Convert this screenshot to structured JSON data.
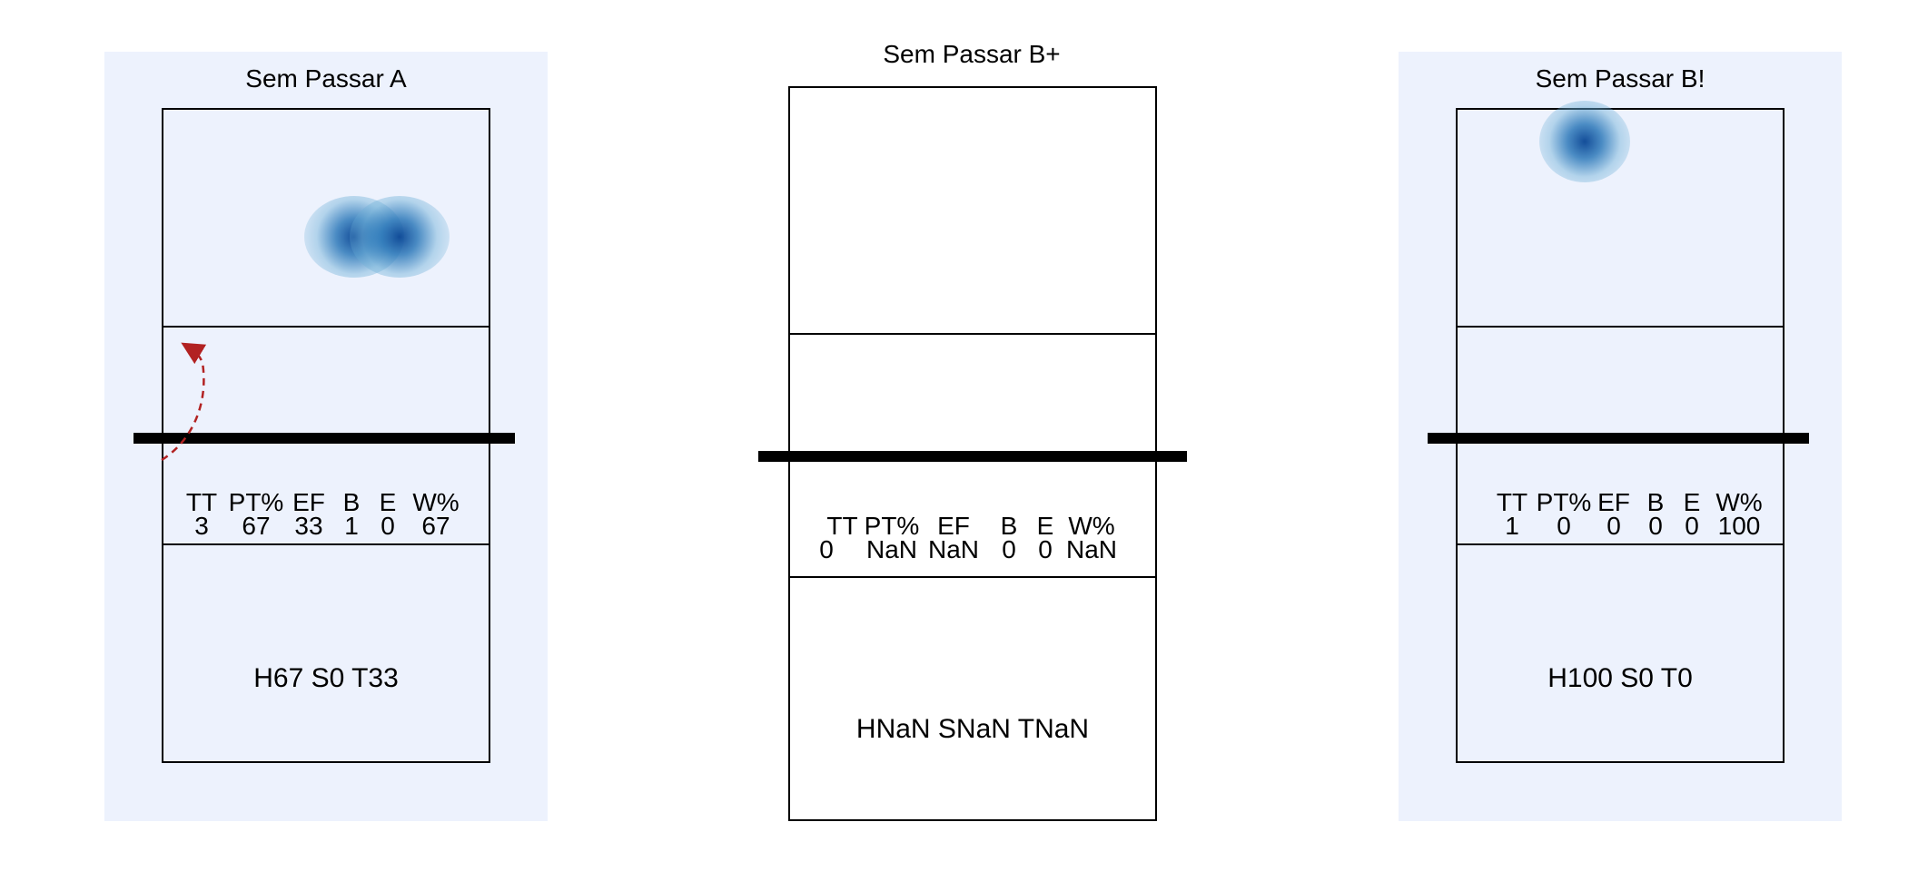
{
  "panels": [
    {
      "title": "Sem Passar A",
      "shaded": true,
      "stat_headers": [
        "TT",
        "PT%",
        "EF",
        "B",
        "E",
        "W%"
      ],
      "stat_values": [
        "3",
        "67",
        "33",
        "1",
        "0",
        "67"
      ],
      "summary": "H67 S0 T33",
      "has_heat": true,
      "has_arrow": true
    },
    {
      "title": "Sem Passar B+",
      "shaded": false,
      "stat_headers": [
        "TT",
        "PT%",
        "EF",
        "B",
        "E",
        "W%"
      ],
      "stat_values": [
        "0",
        "NaN",
        "NaN",
        "0",
        "0",
        "NaN"
      ],
      "summary": "HNaN SNaN TNaN",
      "has_heat": false,
      "has_arrow": false
    },
    {
      "title": "Sem Passar B!",
      "shaded": true,
      "stat_headers": [
        "TT",
        "PT%",
        "EF",
        "B",
        "E",
        "W%"
      ],
      "stat_values": [
        "1",
        "0",
        "0",
        "0",
        "0",
        "100"
      ],
      "summary": "H100 S0 T0",
      "has_heat": true,
      "has_arrow": false
    }
  ],
  "colors": {
    "panel_background": "#edf2fd",
    "heat_core": "#084594",
    "arrow": "#b22222"
  }
}
